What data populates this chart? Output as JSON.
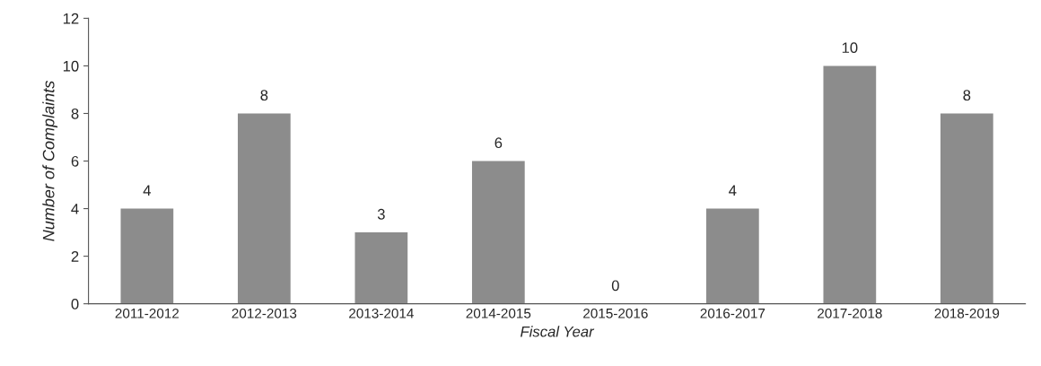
{
  "chart_data": {
    "type": "bar",
    "xlabel": "Fiscal Year",
    "ylabel": "Number of Complaints",
    "categories": [
      "2011-2012",
      "2012-2013",
      "2013-2014",
      "2014-2015",
      "2015-2016",
      "2016-2017",
      "2017-2018",
      "2018-2019"
    ],
    "values": [
      4,
      8,
      3,
      6,
      0,
      4,
      10,
      8
    ],
    "color": "#8c8c8c",
    "ylim": [
      0,
      12
    ],
    "yticks": [
      0,
      2,
      4,
      6,
      8,
      10,
      12
    ],
    "grid": false,
    "data_labels": true
  }
}
